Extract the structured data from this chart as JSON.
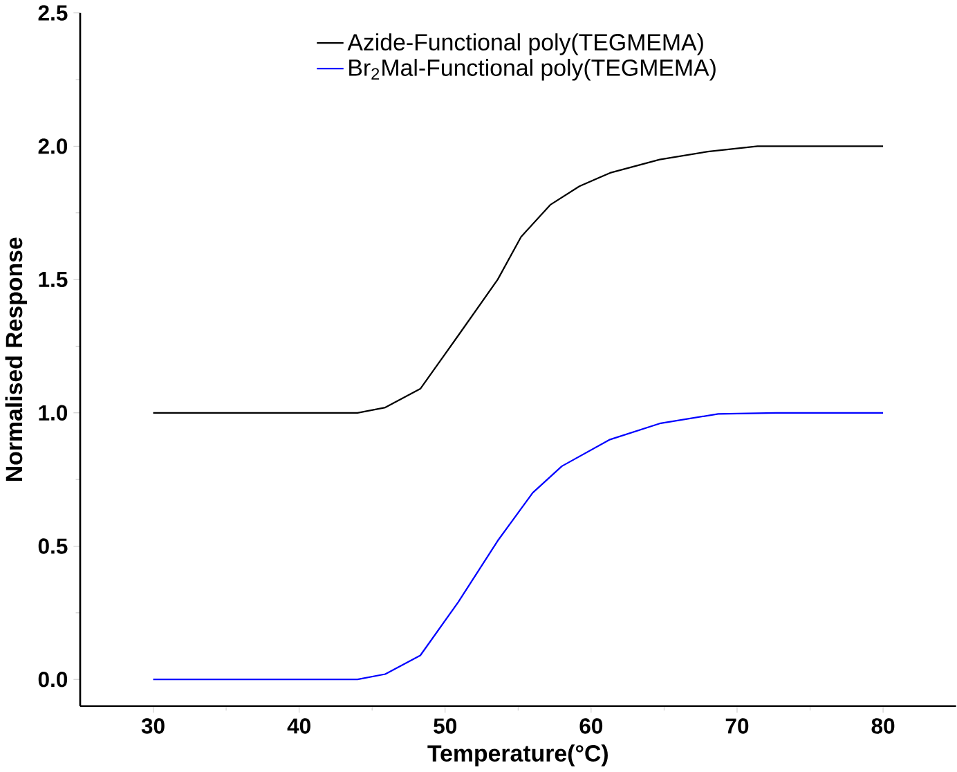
{
  "chart_data": {
    "type": "line",
    "xlabel": "Temperature(°C)",
    "ylabel": "Normalised Response",
    "xlim": [
      25,
      85
    ],
    "xticks": [
      30,
      40,
      50,
      60,
      70,
      80
    ],
    "ylim": [
      -0.1,
      2.5
    ],
    "yticks": [
      {
        "value": 0,
        "label": "0.0"
      },
      {
        "value": 0.5,
        "label": "0.5"
      },
      {
        "value": 1,
        "label": "1.0"
      },
      {
        "value": 1.5,
        "label": "1.5"
      },
      {
        "value": 2,
        "label": "2.0"
      },
      {
        "value": 2.5,
        "label": "2.5"
      }
    ],
    "legend": "top",
    "grid": false,
    "marker": "none",
    "line_style": "solid",
    "series": [
      {
        "name": "Azide-Functional poly(TEGMEMA)",
        "color": "#000000",
        "x": [
          30,
          42.6,
          44,
          45.9,
          48.3,
          50.9,
          53.6,
          55.2,
          57.2,
          59.2,
          61.3,
          64.7,
          68.0,
          71.4,
          80
        ],
        "values": [
          1,
          1,
          1,
          1.02,
          1.09,
          1.29,
          1.5,
          1.66,
          1.78,
          1.85,
          1.9,
          1.95,
          1.98,
          2,
          2
        ]
      },
      {
        "name": "Br$_{2}$Mal-Functional poly(TEGMEMA)",
        "color": "#0000ff",
        "x": [
          30,
          42.6,
          44,
          45.9,
          48.3,
          50.9,
          53.6,
          56.0,
          58.0,
          61.3,
          64.7,
          68.7,
          72.7,
          80
        ],
        "values": [
          0,
          0,
          0,
          0.02,
          0.09,
          0.29,
          0.52,
          0.7,
          0.8,
          0.9,
          0.96,
          0.996,
          1,
          1
        ]
      }
    ]
  }
}
